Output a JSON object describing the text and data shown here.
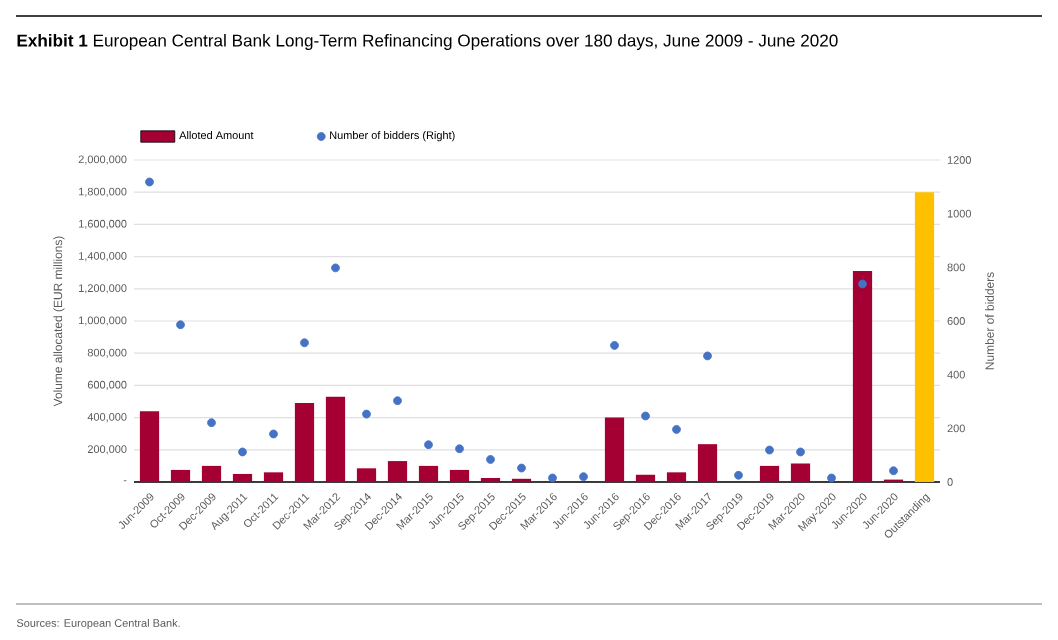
{
  "chart_data": {
    "type": "bar",
    "title": "**Exhibit 1** European Central Bank Long-Term Refinancing Operations over 180 days, June 2009 - June 2020",
    "categories": [
      "Jun-2009",
      "Oct-2009",
      "Dec-2009",
      "Aug-2011",
      "Oct-2011",
      "Dec-2011",
      "Mar-2012",
      "Sep-2014",
      "Dec-2014",
      "Mar-2015",
      "Jun-2015",
      "Sep-2015",
      "Dec-2015",
      "Mar-2016",
      "Jun-2016",
      "Jun-2016",
      "Sep-2016",
      "Dec-2016",
      "Mar-2017",
      "Sep-2019",
      "Dec-2019",
      "Mar-2020",
      "May-2020",
      "Jun-2020",
      "Jun-2020",
      "Outstanding"
    ],
    "series": [
      {
        "name": "Alloted Amount",
        "values": [
          440000,
          75000,
          100000,
          50000,
          60000,
          490000,
          530000,
          85000,
          130000,
          100000,
          75000,
          25000,
          20000,
          5000,
          5000,
          400000,
          45000,
          60000,
          235000,
          5000,
          100000,
          115000,
          5000,
          1310000,
          15000,
          1800000
        ],
        "colors": [
          "#a50034",
          "#a50034",
          "#a50034",
          "#a50034",
          "#a50034",
          "#a50034",
          "#a50034",
          "#a50034",
          "#a50034",
          "#a50034",
          "#a50034",
          "#a50034",
          "#a50034",
          "#a50034",
          "#a50034",
          "#a50034",
          "#a50034",
          "#a50034",
          "#a50034",
          "#a50034",
          "#a50034",
          "#a50034",
          "#a50034",
          "#a50034",
          "#a50034",
          "#ffc000"
        ]
      },
      {
        "name": "Number of bidders (Right)",
        "type": "scatter",
        "axis": "y2",
        "color": "#4472c4",
        "values": [
          1118,
          586,
          221,
          112,
          179,
          519,
          798,
          253,
          303,
          139,
          124,
          84,
          52,
          15,
          20,
          509,
          246,
          196,
          470,
          25,
          119,
          112,
          15,
          738,
          42,
          null
        ]
      }
    ],
    "ylabel": "Volume allocated (EUR millions)",
    "y2label": "Number of bidders",
    "ylim": [
      0,
      2000000
    ],
    "yticks": [
      {
        "value": 0,
        "label": "-"
      },
      {
        "value": 200000,
        "label": "200,000"
      },
      {
        "value": 400000,
        "label": "400,000"
      },
      {
        "value": 600000,
        "label": "600,000"
      },
      {
        "value": 800000,
        "label": "800,000"
      },
      {
        "value": 1000000,
        "label": "1,000,000"
      },
      {
        "value": 1200000,
        "label": "1,200,000"
      },
      {
        "value": 1400000,
        "label": "1,400,000"
      },
      {
        "value": 1600000,
        "label": "1,600,000"
      },
      {
        "value": 1800000,
        "label": "1,800,000"
      },
      {
        "value": 2000000,
        "label": "2,000,000"
      }
    ],
    "y2lim": [
      0,
      1200
    ],
    "y2ticks": [
      0,
      200,
      400,
      600,
      800,
      1000,
      1200
    ],
    "grid": "y",
    "legend": "top left",
    "marker": "circle",
    "annotations": [
      "Sources: European Central Bank."
    ]
  }
}
